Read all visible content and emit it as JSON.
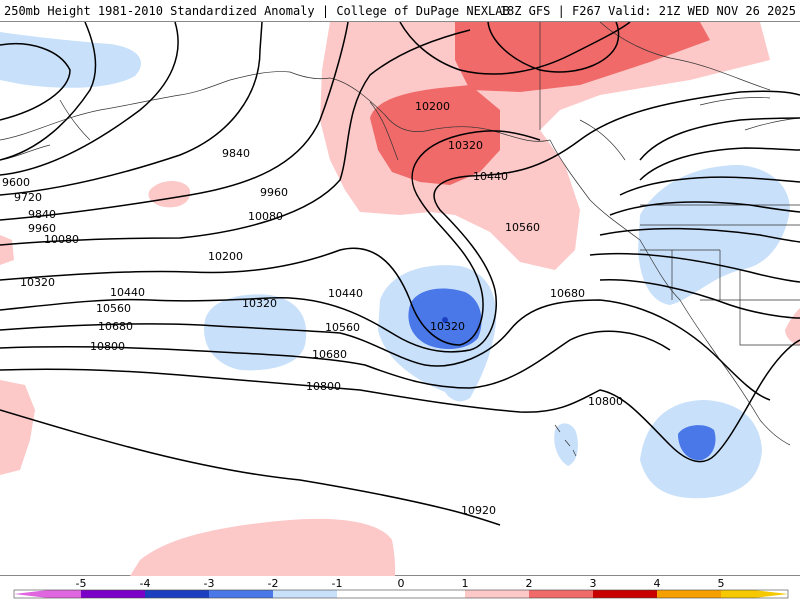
{
  "header": {
    "title_left": "250mb Height 1981-2010 Standardized Anomaly | College of DuPage NEXLAB",
    "title_right": "18Z GFS | F267 Valid: 21Z WED NOV 26 2025"
  },
  "colors": {
    "neg5": "#e066e0",
    "neg4": "#7b00c8",
    "neg3": "#1c3fbf",
    "neg2": "#4a78e8",
    "neg1": "#c8e0fa",
    "zero": "#ffffff",
    "pos1": "#fcc8c8",
    "pos2": "#f06a6a",
    "pos3": "#c80000",
    "pos4": "#f5a000",
    "pos5": "#f5c800"
  },
  "colorbar": {
    "ticks": [
      "-5",
      "-4",
      "-3",
      "-2",
      "-1",
      "0",
      "1",
      "2",
      "3",
      "4",
      "5"
    ]
  },
  "contours": [
    {
      "label": "9600"
    },
    {
      "label": "9720"
    },
    {
      "label": "9840"
    },
    {
      "label": "9840"
    },
    {
      "label": "9960"
    },
    {
      "label": "9960"
    },
    {
      "label": "10080"
    },
    {
      "label": "10080"
    },
    {
      "label": "10200"
    },
    {
      "label": "10200"
    },
    {
      "label": "10320"
    },
    {
      "label": "10320"
    },
    {
      "label": "10320"
    },
    {
      "label": "10320"
    },
    {
      "label": "10440"
    },
    {
      "label": "10440"
    },
    {
      "label": "10440"
    },
    {
      "label": "10560"
    },
    {
      "label": "10560"
    },
    {
      "label": "10560"
    },
    {
      "label": "10680"
    },
    {
      "label": "10680"
    },
    {
      "label": "10680"
    },
    {
      "label": "10800"
    },
    {
      "label": "10800"
    },
    {
      "label": "10800"
    },
    {
      "label": "10920"
    }
  ]
}
